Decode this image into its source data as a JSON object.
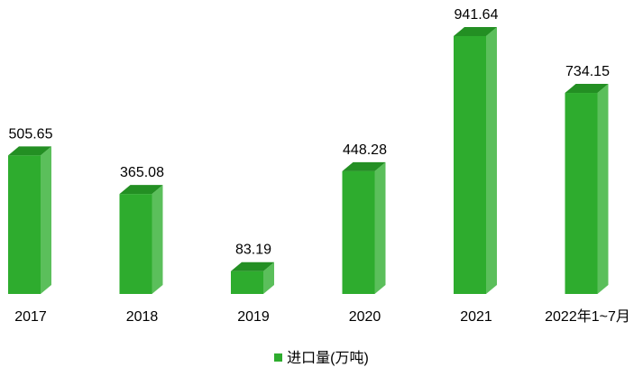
{
  "chart_data": {
    "type": "bar",
    "categories": [
      "2017",
      "2018",
      "2019",
      "2020",
      "2021",
      "2022年1~7月"
    ],
    "series": [
      {
        "name": "进口量(万吨)",
        "values": [
          505.65,
          365.08,
          83.19,
          448.28,
          941.64,
          734.15
        ],
        "data_labels": [
          "505.65",
          "365.08",
          "83.19",
          "448.28",
          "941.64",
          "734.15"
        ]
      }
    ],
    "ylim": [
      0,
      941.64
    ],
    "grid": false,
    "legend_position": "bottom",
    "colors": {
      "front": "#2eac2e",
      "side": "#5bbf5b",
      "top": "#238f23"
    }
  }
}
